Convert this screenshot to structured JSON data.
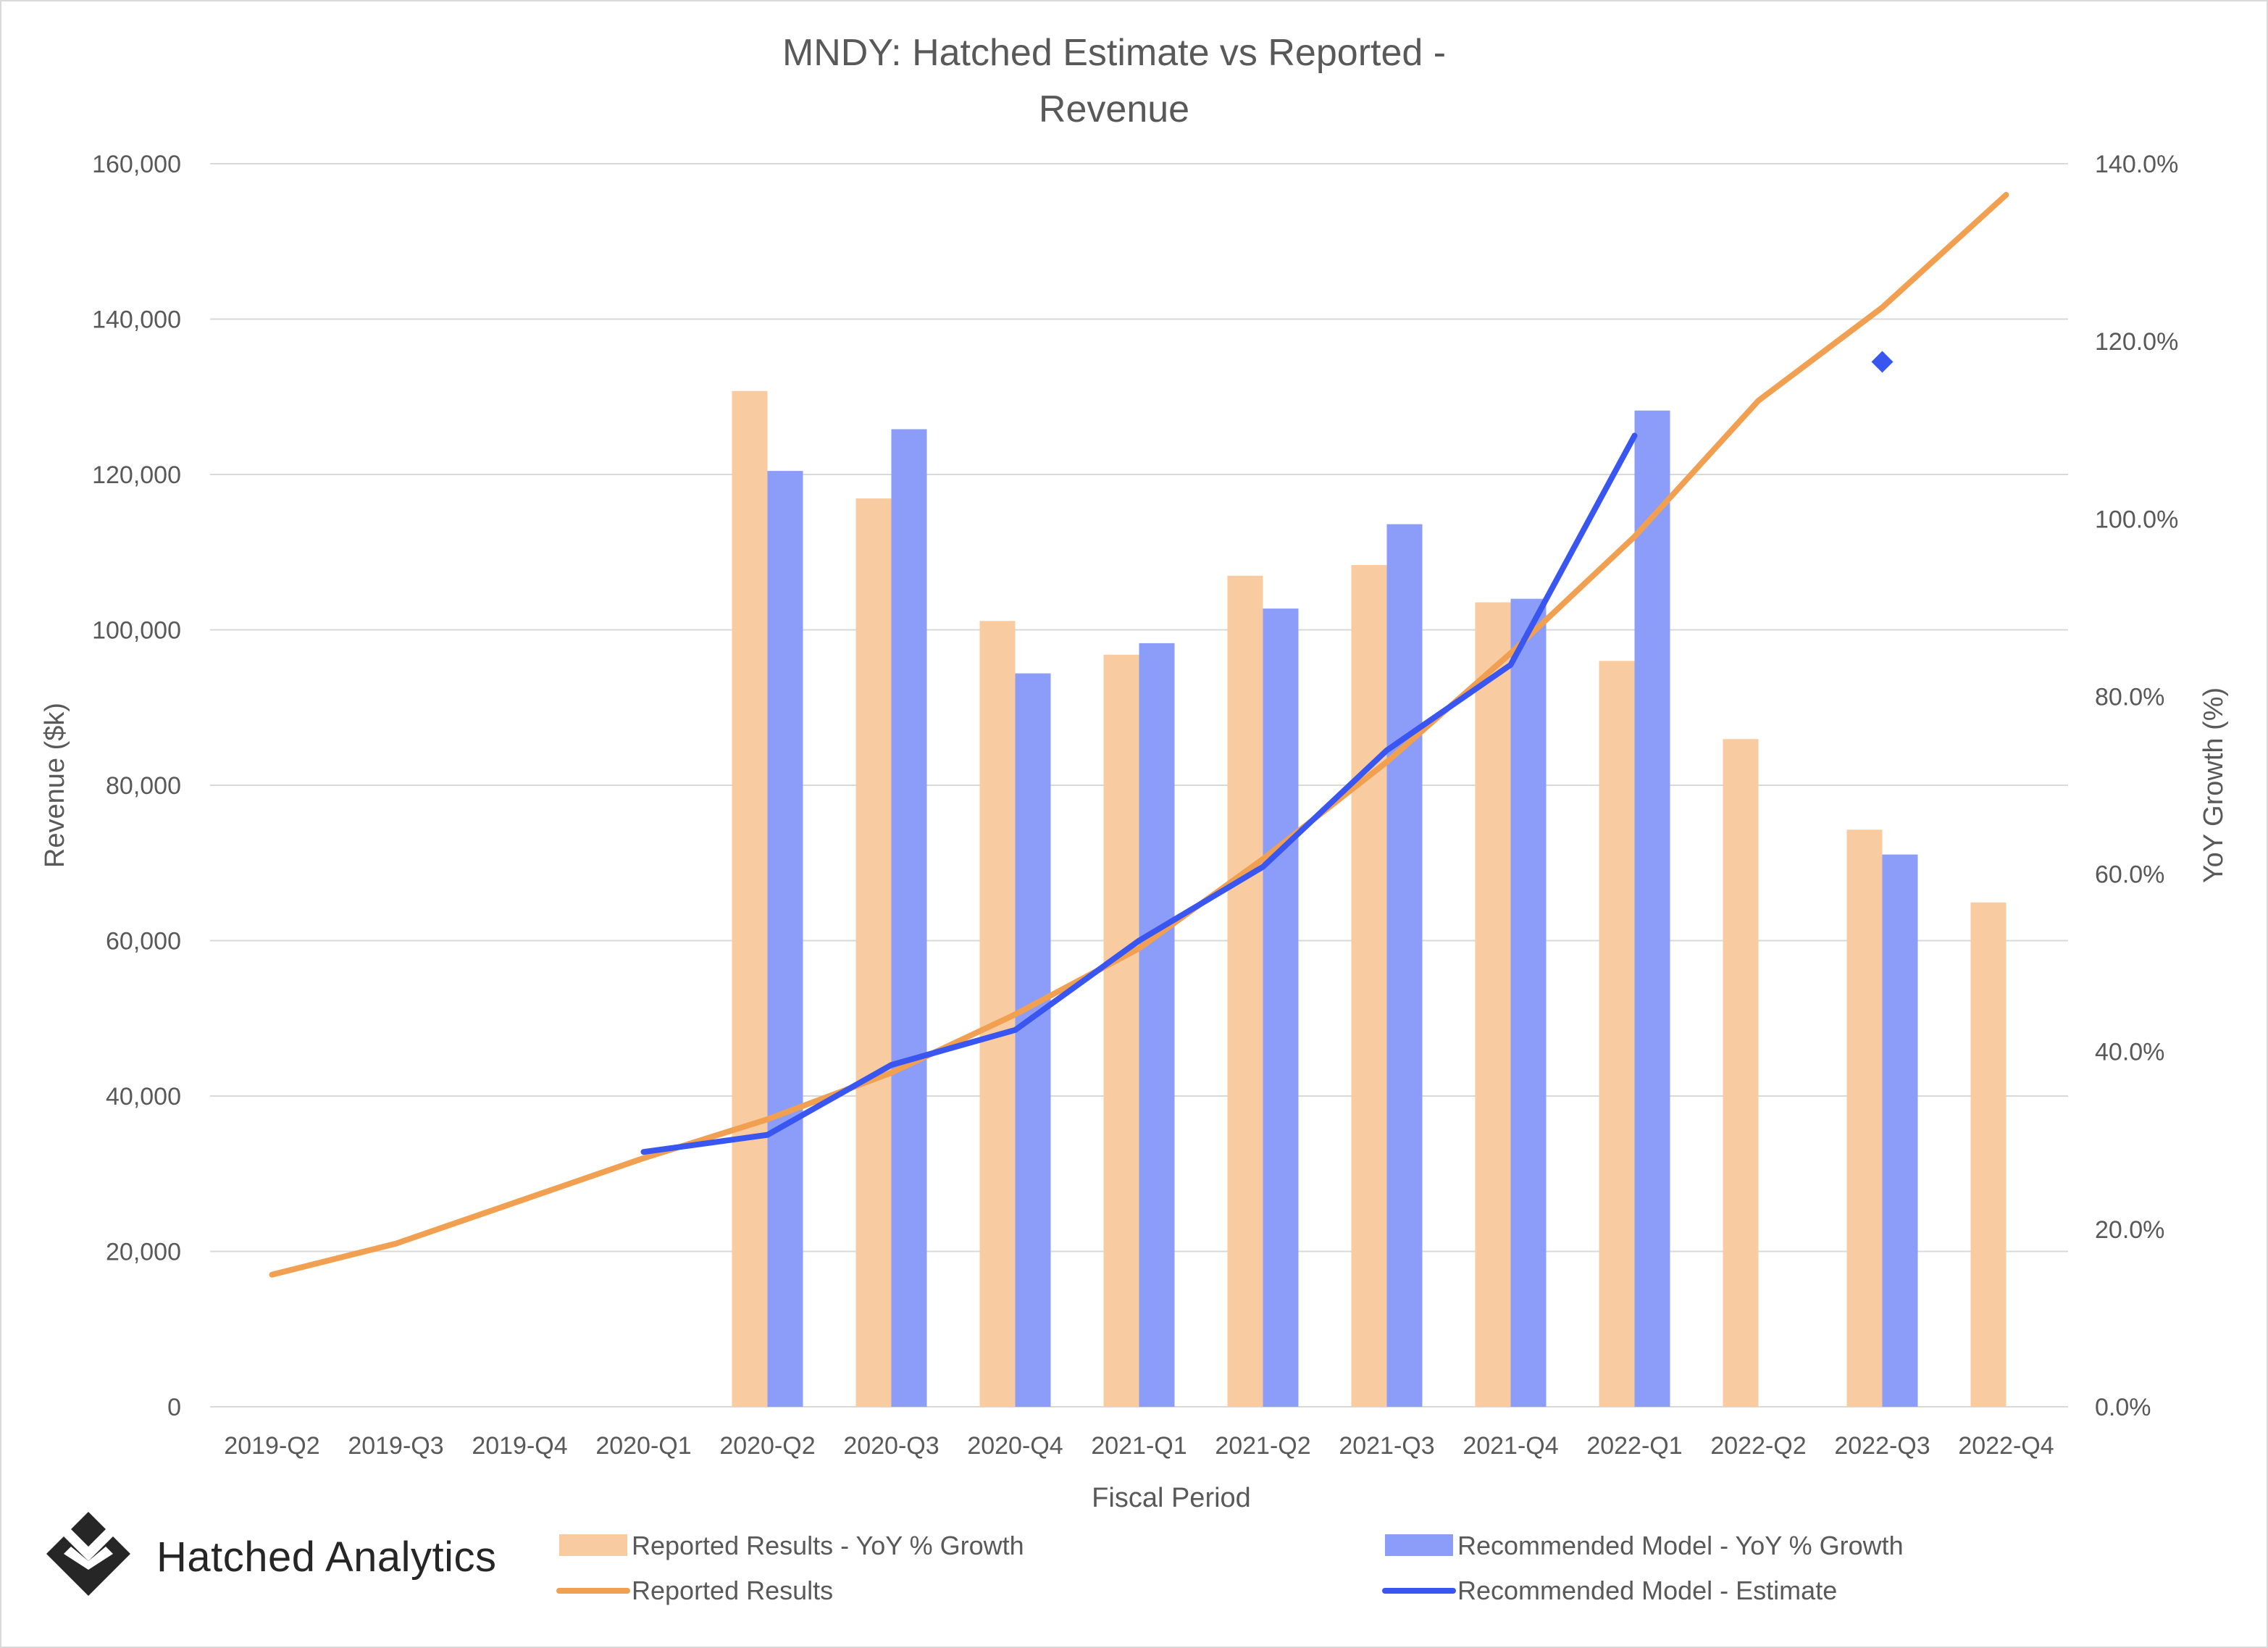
{
  "brand": {
    "name": "Hatched Analytics",
    "logo_icon": "hatched-diamond-logo-icon"
  },
  "chart_data": {
    "type": "bar+line",
    "title_lines": [
      "MNDY: Hatched Estimate vs Reported -",
      "Revenue"
    ],
    "xlabel": "Fiscal Period",
    "ylabel_left": "Revenue ($k)",
    "ylabel_right": "YoY Growth (%)",
    "ylim_left": [
      0,
      160000
    ],
    "ylim_right": [
      0,
      140
    ],
    "left_ticks": [
      "160,000",
      "140,000",
      "120,000",
      "100,000",
      "80,000",
      "60,000",
      "40,000",
      "20,000",
      "0"
    ],
    "right_ticks": [
      "140.0%",
      "120.0%",
      "100.0%",
      "80.0%",
      "60.0%",
      "40.0%",
      "20.0%",
      "0.0%"
    ],
    "grid": true,
    "legend_position": "bottom",
    "categories": [
      "2019-Q2",
      "2019-Q3",
      "2019-Q4",
      "2020-Q1",
      "2020-Q2",
      "2020-Q3",
      "2020-Q4",
      "2021-Q1",
      "2021-Q2",
      "2021-Q3",
      "2021-Q4",
      "2022-Q1",
      "2022-Q2",
      "2022-Q3",
      "2022-Q4"
    ],
    "series": [
      {
        "name": "Reported Results - YoY % Growth",
        "kind": "bar",
        "axis": "right",
        "color": "#f8cba0",
        "values": [
          null,
          null,
          null,
          null,
          114.4,
          102.3,
          88.5,
          84.7,
          93.6,
          94.8,
          90.6,
          84.0,
          75.2,
          65.0,
          56.8
        ]
      },
      {
        "name": "Recommended Model - YoY % Growth",
        "kind": "bar",
        "axis": "right",
        "color": "#8c9cf9",
        "values": [
          null,
          null,
          null,
          null,
          105.4,
          110.1,
          82.6,
          86.0,
          89.9,
          99.4,
          91.0,
          112.2,
          null,
          62.2,
          null
        ]
      },
      {
        "name": "Reported Results",
        "kind": "line",
        "axis": "left",
        "color": "#f0a050",
        "values": [
          17000,
          21000,
          26500,
          32000,
          37000,
          43000,
          50500,
          59000,
          70500,
          83000,
          97000,
          112000,
          129500,
          141500,
          156000
        ]
      },
      {
        "name": "Recommended Model - Estimate",
        "kind": "line",
        "axis": "left",
        "color": "#3a56f0",
        "values": [
          null,
          null,
          null,
          32800,
          35000,
          44000,
          48500,
          60000,
          69500,
          84500,
          95500,
          125000,
          null,
          134500,
          null
        ]
      }
    ]
  }
}
